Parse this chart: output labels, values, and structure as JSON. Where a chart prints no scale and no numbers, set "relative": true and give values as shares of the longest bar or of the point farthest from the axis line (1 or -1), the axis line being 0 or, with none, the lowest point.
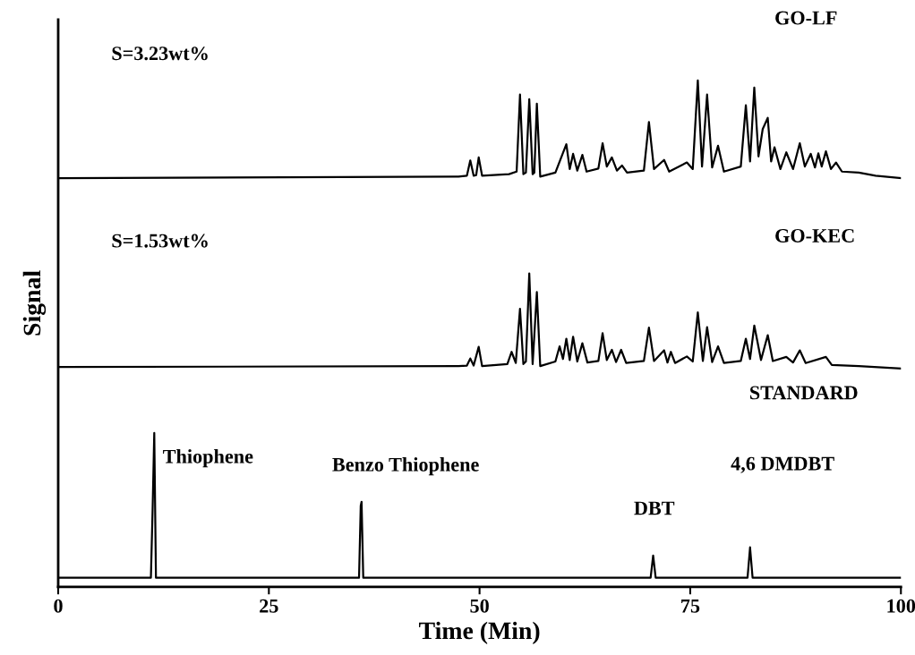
{
  "chart_data": {
    "type": "line",
    "relative": true,
    "xlabel": "Time (Min)",
    "ylabel": "Signal",
    "xlim": [
      0,
      100
    ],
    "xticks": [
      0,
      25,
      50,
      75,
      100
    ],
    "tick_labels": "x",
    "grid": false,
    "legend": false,
    "marker": "none",
    "line_style": "solid",
    "series": [
      {
        "color": "#000000",
        "x": [
          0,
          47.5,
          48.5,
          48.9,
          49.3,
          49.6,
          49.9,
          50.3,
          53.5,
          54.4,
          54.8,
          55.2,
          55.5,
          55.9,
          56.3,
          56.5,
          56.8,
          57.2,
          59.0,
          60.3,
          60.7,
          61.1,
          61.6,
          62.2,
          62.7,
          64.1,
          64.6,
          65.1,
          65.7,
          66.3,
          66.9,
          67.5,
          69.5,
          70.1,
          70.7,
          71.9,
          72.5,
          74.6,
          75.3,
          75.9,
          76.4,
          77.0,
          77.6,
          78.3,
          79.0,
          81.0,
          81.6,
          82.1,
          82.6,
          83.1,
          83.6,
          84.2,
          84.6,
          85.0,
          85.7,
          86.4,
          87.2,
          88.0,
          88.6,
          89.3,
          89.8,
          90.2,
          90.6,
          91.1,
          91.7,
          92.3,
          93.0,
          95,
          97,
          100
        ],
        "values": [
          0.807,
          0.81,
          0.812,
          0.842,
          0.812,
          0.813,
          0.848,
          0.812,
          0.815,
          0.82,
          0.972,
          0.815,
          0.818,
          0.963,
          0.815,
          0.818,
          0.954,
          0.81,
          0.818,
          0.874,
          0.825,
          0.855,
          0.822,
          0.853,
          0.82,
          0.826,
          0.876,
          0.83,
          0.848,
          0.822,
          0.832,
          0.818,
          0.822,
          0.918,
          0.825,
          0.843,
          0.82,
          0.838,
          0.825,
          1.0,
          0.83,
          0.972,
          0.828,
          0.871,
          0.82,
          0.83,
          0.951,
          0.84,
          0.986,
          0.85,
          0.904,
          0.926,
          0.84,
          0.868,
          0.825,
          0.858,
          0.825,
          0.876,
          0.83,
          0.855,
          0.828,
          0.856,
          0.83,
          0.86,
          0.825,
          0.838,
          0.82,
          0.818,
          0.812,
          0.807
        ]
      },
      {
        "color": "#000000",
        "x": [
          0,
          47.5,
          48.5,
          48.9,
          49.3,
          49.9,
          50.3,
          53.3,
          53.8,
          54.3,
          54.8,
          55.2,
          55.5,
          55.9,
          56.3,
          56.8,
          57.2,
          59.0,
          59.5,
          59.9,
          60.3,
          60.7,
          61.1,
          61.6,
          62.2,
          62.8,
          64.1,
          64.6,
          65.1,
          65.7,
          66.2,
          66.8,
          67.4,
          69.5,
          70.1,
          70.7,
          71.9,
          72.3,
          72.7,
          73.2,
          74.6,
          75.3,
          75.9,
          76.5,
          77.0,
          77.6,
          78.3,
          79.0,
          81.0,
          81.6,
          82.1,
          82.6,
          83.4,
          84.2,
          84.8,
          86.4,
          87.2,
          88.0,
          88.7,
          91.1,
          91.8,
          95,
          100
        ],
        "values": [
          0.434,
          0.436,
          0.437,
          0.451,
          0.437,
          0.474,
          0.436,
          0.44,
          0.464,
          0.442,
          0.549,
          0.44,
          0.445,
          0.619,
          0.44,
          0.582,
          0.436,
          0.445,
          0.475,
          0.45,
          0.49,
          0.448,
          0.494,
          0.445,
          0.481,
          0.443,
          0.446,
          0.501,
          0.448,
          0.468,
          0.444,
          0.468,
          0.442,
          0.446,
          0.512,
          0.446,
          0.467,
          0.443,
          0.464,
          0.442,
          0.455,
          0.445,
          0.542,
          0.446,
          0.513,
          0.444,
          0.475,
          0.442,
          0.446,
          0.49,
          0.45,
          0.516,
          0.448,
          0.497,
          0.446,
          0.454,
          0.443,
          0.467,
          0.442,
          0.454,
          0.438,
          0.436,
          0.431
        ]
      },
      {
        "color": "#000000",
        "x": [
          0,
          11.0,
          11.2,
          11.4,
          11.6,
          35.7,
          35.9,
          36.0,
          36.2,
          70.3,
          70.6,
          70.9,
          81.8,
          82.1,
          82.4,
          100
        ],
        "values": [
          0.018,
          0.018,
          0.15,
          0.304,
          0.018,
          0.018,
          0.16,
          0.168,
          0.018,
          0.018,
          0.062,
          0.018,
          0.018,
          0.078,
          0.018,
          0.018
        ]
      }
    ],
    "annotations": [
      "GO-LF",
      "S=3.23wt%",
      "GO-KEC",
      "S=1.53wt%",
      "STANDARD",
      "4,6 DMDBT",
      {
        "text": "Thiophene",
        "x": 11.4,
        "y": 0.304
      },
      {
        "text": "Benzo Thiophene",
        "x": 36.0,
        "y": 0.168
      },
      {
        "text": "DBT",
        "x": 70.6,
        "y": 0.062
      }
    ]
  }
}
